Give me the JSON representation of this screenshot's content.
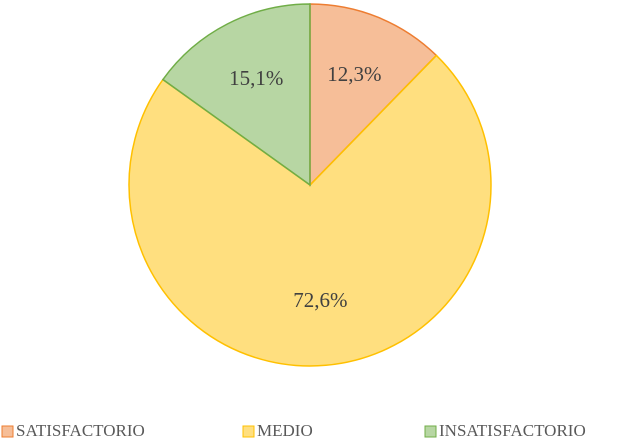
{
  "chart_data": {
    "type": "pie",
    "categories": [
      "SATISFACTORIO",
      "MEDIO",
      "INSATISFACTORIO"
    ],
    "values": [
      12.3,
      72.6,
      15.1
    ],
    "value_labels": [
      "12,3%",
      "72,6%",
      "15,1%"
    ],
    "colors": [
      "#ed7d31",
      "#ffc000",
      "#70ad47"
    ]
  }
}
